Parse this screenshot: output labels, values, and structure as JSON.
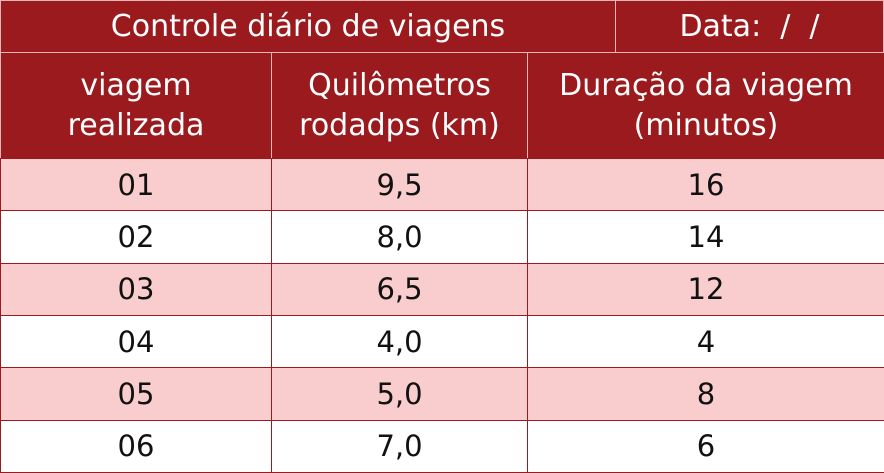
{
  "header": {
    "title": "Controle diário de viagens",
    "date": "Data:  /  /"
  },
  "table": {
    "columns": [
      [
        "viagem",
        "realizada"
      ],
      [
        "Quilômetros",
        "rodadps (km)"
      ],
      [
        "Duração da viagem",
        "(minutos)"
      ]
    ],
    "rows": [
      [
        "01",
        "9,5",
        "16"
      ],
      [
        "02",
        "8,0",
        "14"
      ],
      [
        "03",
        "6,5",
        "12"
      ],
      [
        "04",
        "4,0",
        "4"
      ],
      [
        "05",
        "5,0",
        "8"
      ],
      [
        "06",
        "7,0",
        "6"
      ]
    ]
  }
}
